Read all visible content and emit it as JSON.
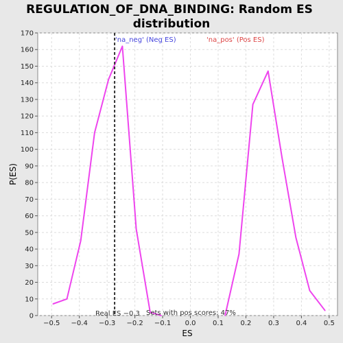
{
  "chart_data": {
    "type": "line",
    "title_lines": [
      "REGULATION_OF_DNA_BINDING: Random ES",
      "distribution"
    ],
    "xlabel": "ES",
    "ylabel": "P(ES)",
    "xlim": [
      -0.55,
      0.53
    ],
    "ylim": [
      0,
      170
    ],
    "xticks": [
      -0.5,
      -0.4,
      -0.3,
      -0.2,
      -0.1,
      0.0,
      0.1,
      0.2,
      0.3,
      0.4,
      0.5
    ],
    "xtick_labels": [
      "−0.5",
      "−0.4",
      "−0.3",
      "−0.2",
      "−0.1",
      "0.0",
      "0.1",
      "0.2",
      "0.3",
      "0.4",
      "0.5"
    ],
    "yticks": [
      0,
      10,
      20,
      30,
      40,
      50,
      60,
      70,
      80,
      90,
      100,
      110,
      120,
      130,
      140,
      150,
      160,
      170
    ],
    "grid": true,
    "series": [
      {
        "name": "'na_neg' (Neg ES)",
        "color": "#4444dd",
        "x": [
          -0.495,
          -0.445,
          -0.395,
          -0.345,
          -0.295,
          -0.245,
          -0.195,
          -0.145,
          -0.105
        ],
        "y": [
          7,
          10,
          45,
          110,
          142,
          162,
          52,
          2,
          0
        ]
      },
      {
        "name": "'na_pos' (Pos ES)",
        "color": "#dd4444",
        "x": [
          0.125,
          0.175,
          0.225,
          0.28,
          0.33,
          0.38,
          0.43,
          0.485
        ],
        "y": [
          0,
          37,
          127,
          147,
          95,
          47,
          15,
          3
        ]
      }
    ],
    "line_color": "#ee44ee",
    "real_es": {
      "value": -0.273,
      "label": "Real ES −0.3"
    },
    "annotation": "Sets with pos scores: 47%"
  }
}
